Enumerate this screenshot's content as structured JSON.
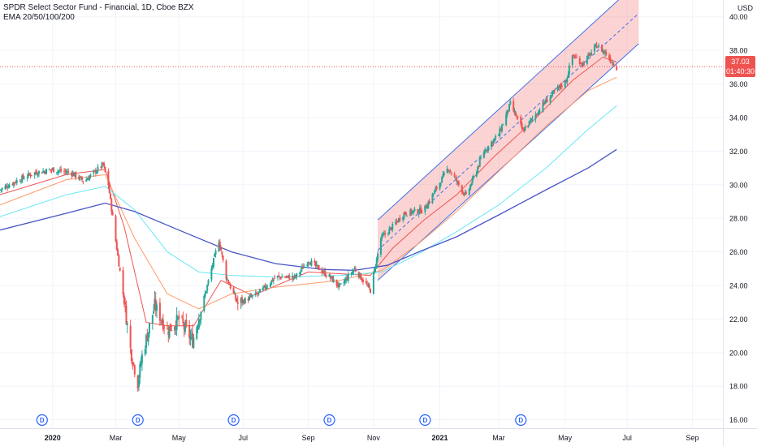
{
  "header": {
    "title": "SPDR Select Sector Fund - Financial, 1D, Cboe BZX",
    "indicator": "EMA 20/50/100/200"
  },
  "axis": {
    "currency": "USD"
  },
  "last_price": {
    "value": "37.03",
    "countdown": "01:40:30",
    "color": "#ef5350"
  },
  "colors": {
    "up": "#26a69a",
    "down": "#ef5350",
    "ema20": "#ef5350",
    "ema50": "#ff9966",
    "ema100": "#66e8f5",
    "ema200": "#4a55c6",
    "channel_line": "#3f6fe8",
    "channel_fill": "rgba(244, 130, 130, 0.35)",
    "dividend_marker": "#2962ff"
  },
  "chart_data": {
    "type": "candlestick",
    "title": "SPDR Select Sector Fund - Financial, 1D, Cboe BZX",
    "ylabel": "USD",
    "ylim": [
      15.5,
      41.0
    ],
    "y_ticks": [
      "16.00",
      "18.00",
      "20.00",
      "22.00",
      "24.00",
      "26.00",
      "28.00",
      "30.00",
      "32.00",
      "34.00",
      "36.00",
      "38.00",
      "40.00"
    ],
    "x_ticks": [
      {
        "label": "2020",
        "date": "2020-01-02"
      },
      {
        "label": "Mar",
        "date": "2020-03-02"
      },
      {
        "label": "May",
        "date": "2020-05-01"
      },
      {
        "label": "Jul",
        "date": "2020-07-01"
      },
      {
        "label": "Sep",
        "date": "2020-09-01"
      },
      {
        "label": "Nov",
        "date": "2020-11-02"
      },
      {
        "label": "2021",
        "date": "2021-01-04"
      },
      {
        "label": "Mar",
        "date": "2021-03-01"
      },
      {
        "label": "May",
        "date": "2021-05-03"
      },
      {
        "label": "Jul",
        "date": "2021-07-01"
      },
      {
        "label": "Sep",
        "date": "2021-09-01"
      }
    ],
    "xlim": [
      "2019-11-13",
      "2021-09-30"
    ],
    "price_anchors": [
      [
        "2019-11-13",
        29.7
      ],
      [
        "2019-12-01",
        30.3
      ],
      [
        "2019-12-15",
        30.7
      ],
      [
        "2020-01-02",
        30.9
      ],
      [
        "2020-01-20",
        30.7
      ],
      [
        "2020-02-01",
        30.2
      ],
      [
        "2020-02-19",
        31.2
      ],
      [
        "2020-02-24",
        30.0
      ],
      [
        "2020-03-01",
        27.1
      ],
      [
        "2020-03-09",
        23.5
      ],
      [
        "2020-03-16",
        20.2
      ],
      [
        "2020-03-23",
        18.2
      ],
      [
        "2020-03-27",
        19.8
      ],
      [
        "2020-04-08",
        22.8
      ],
      [
        "2020-04-20",
        21.3
      ],
      [
        "2020-05-01",
        22.0
      ],
      [
        "2020-05-14",
        20.7
      ],
      [
        "2020-05-26",
        23.5
      ],
      [
        "2020-06-08",
        26.7
      ],
      [
        "2020-06-15",
        24.5
      ],
      [
        "2020-06-26",
        22.9
      ],
      [
        "2020-07-15",
        23.5
      ],
      [
        "2020-08-01",
        24.5
      ],
      [
        "2020-08-20",
        24.5
      ],
      [
        "2020-09-01",
        25.5
      ],
      [
        "2020-09-23",
        24.4
      ],
      [
        "2020-10-01",
        23.9
      ],
      [
        "2020-10-15",
        25.0
      ],
      [
        "2020-10-30",
        23.7
      ],
      [
        "2020-11-09",
        26.8
      ],
      [
        "2020-11-20",
        27.5
      ],
      [
        "2020-12-01",
        28.3
      ],
      [
        "2020-12-20",
        28.5
      ],
      [
        "2021-01-12",
        31.0
      ],
      [
        "2021-01-29",
        29.3
      ],
      [
        "2021-02-15",
        32.0
      ],
      [
        "2021-03-01",
        33.0
      ],
      [
        "2021-03-12",
        34.8
      ],
      [
        "2021-03-24",
        33.2
      ],
      [
        "2021-04-15",
        35.0
      ],
      [
        "2021-05-04",
        36.2
      ],
      [
        "2021-05-10",
        37.7
      ],
      [
        "2021-05-20",
        37.2
      ],
      [
        "2021-06-02",
        38.3
      ],
      [
        "2021-06-11",
        37.8
      ],
      [
        "2021-06-17",
        37.3
      ],
      [
        "2021-06-21",
        37.0
      ]
    ],
    "ema_series": [
      {
        "name": "EMA 20",
        "points": [
          [
            "2019-11-13",
            29.4
          ],
          [
            "2020-01-15",
            30.6
          ],
          [
            "2020-02-21",
            30.9
          ],
          [
            "2020-03-10",
            27.5
          ],
          [
            "2020-03-31",
            21.8
          ],
          [
            "2020-04-20",
            21.6
          ],
          [
            "2020-05-15",
            21.6
          ],
          [
            "2020-06-10",
            24.3
          ],
          [
            "2020-07-10",
            23.4
          ],
          [
            "2020-09-01",
            24.8
          ],
          [
            "2020-10-30",
            24.6
          ],
          [
            "2020-11-20",
            26.2
          ],
          [
            "2020-12-20",
            27.9
          ],
          [
            "2021-01-20",
            29.4
          ],
          [
            "2021-02-25",
            31.7
          ],
          [
            "2021-04-01",
            33.7
          ],
          [
            "2021-05-10",
            36.2
          ],
          [
            "2021-06-08",
            37.6
          ],
          [
            "2021-06-21",
            37.3
          ]
        ]
      },
      {
        "name": "EMA 50",
        "points": [
          [
            "2019-11-13",
            28.8
          ],
          [
            "2020-01-15",
            30.3
          ],
          [
            "2020-02-21",
            30.6
          ],
          [
            "2020-03-20",
            26.8
          ],
          [
            "2020-04-20",
            23.5
          ],
          [
            "2020-05-20",
            22.6
          ],
          [
            "2020-06-20",
            23.5
          ],
          [
            "2020-08-01",
            23.9
          ],
          [
            "2020-10-01",
            24.3
          ],
          [
            "2020-11-10",
            24.9
          ],
          [
            "2020-12-15",
            26.5
          ],
          [
            "2021-01-20",
            28.4
          ],
          [
            "2021-03-01",
            30.8
          ],
          [
            "2021-04-15",
            33.5
          ],
          [
            "2021-05-25",
            35.6
          ],
          [
            "2021-06-21",
            36.4
          ]
        ]
      },
      {
        "name": "EMA 100",
        "points": [
          [
            "2019-11-13",
            28.1
          ],
          [
            "2020-01-15",
            29.4
          ],
          [
            "2020-02-21",
            29.9
          ],
          [
            "2020-03-20",
            28.5
          ],
          [
            "2020-04-20",
            26.0
          ],
          [
            "2020-05-20",
            24.8
          ],
          [
            "2020-06-20",
            24.6
          ],
          [
            "2020-08-01",
            24.5
          ],
          [
            "2020-10-01",
            24.6
          ],
          [
            "2020-11-10",
            24.8
          ],
          [
            "2020-12-15",
            25.9
          ],
          [
            "2021-01-20",
            27.2
          ],
          [
            "2021-03-01",
            28.8
          ],
          [
            "2021-04-15",
            31.0
          ],
          [
            "2021-05-25",
            33.3
          ],
          [
            "2021-06-21",
            34.7
          ]
        ]
      },
      {
        "name": "EMA 200",
        "points": [
          [
            "2019-11-13",
            27.3
          ],
          [
            "2020-01-15",
            28.3
          ],
          [
            "2020-02-21",
            28.9
          ],
          [
            "2020-03-20",
            28.4
          ],
          [
            "2020-05-01",
            27.3
          ],
          [
            "2020-06-20",
            26.0
          ],
          [
            "2020-08-01",
            25.3
          ],
          [
            "2020-09-15",
            24.95
          ],
          [
            "2020-10-15",
            24.9
          ],
          [
            "2020-11-15",
            25.2
          ],
          [
            "2020-12-15",
            26.0
          ],
          [
            "2021-01-20",
            26.9
          ],
          [
            "2021-03-01",
            28.2
          ],
          [
            "2021-04-15",
            29.7
          ],
          [
            "2021-05-25",
            31.0
          ],
          [
            "2021-06-21",
            32.1
          ]
        ]
      }
    ],
    "regression_channel": {
      "start": "2020-11-06",
      "end": "2021-07-12",
      "lower": [
        24.3,
        38.4
      ],
      "median": [
        26.1,
        40.2
      ],
      "upper": [
        27.9,
        42.1
      ]
    },
    "last_price_line": 37.03,
    "dividends": [
      "2019-12-23",
      "2020-03-23",
      "2020-06-22",
      "2020-09-21",
      "2020-12-21",
      "2021-03-22"
    ]
  }
}
